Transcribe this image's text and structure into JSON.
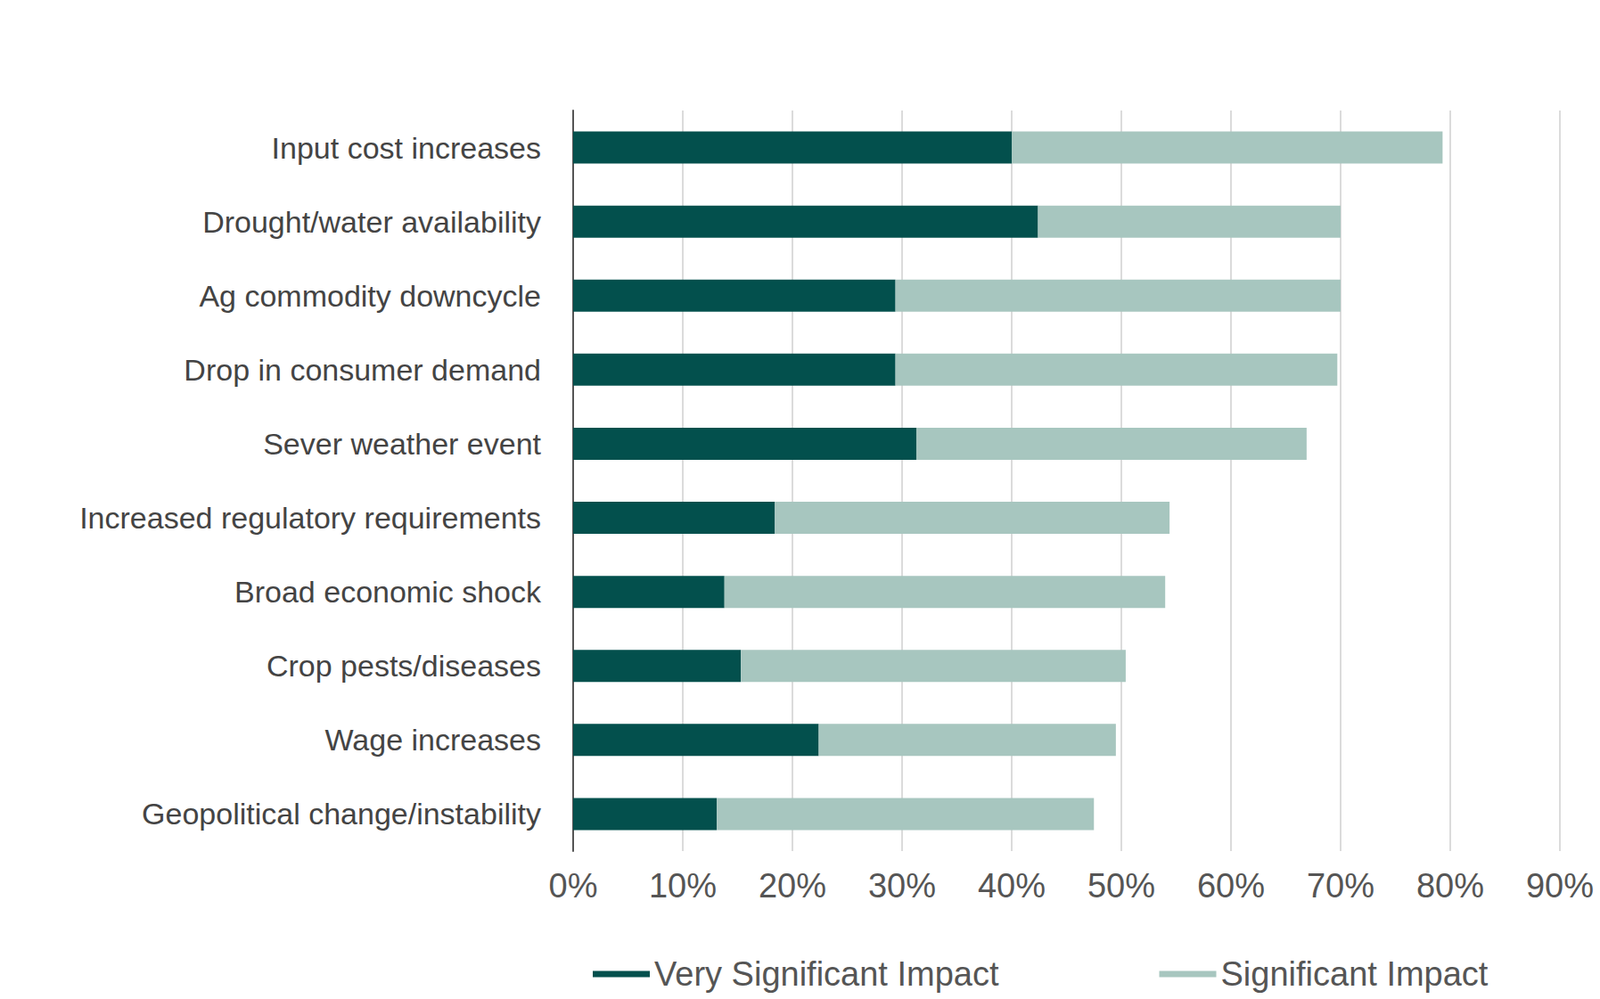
{
  "chart_data": {
    "type": "bar",
    "orientation": "horizontal",
    "stacked": true,
    "categories": [
      "Input cost increases",
      "Drought/water availability",
      "Ag commodity downcycle",
      "Drop in consumer demand",
      "Sever weather event",
      "Increased regulatory requirements",
      "Broad economic shock",
      "Crop pests/diseases",
      "Wage increases",
      "Geopolitical change/instability"
    ],
    "series": [
      {
        "name": "Very Significant Impact",
        "color": "#03504d",
        "values": [
          40.0,
          42.4,
          29.4,
          29.4,
          31.3,
          18.4,
          13.8,
          15.3,
          22.4,
          13.1
        ]
      },
      {
        "name": "Significant Impact",
        "color": "#a7c6bf",
        "values": [
          39.3,
          27.6,
          40.6,
          40.3,
          35.6,
          36.0,
          40.2,
          35.1,
          27.1,
          34.4
        ]
      }
    ],
    "xlim": [
      0,
      90
    ],
    "xticks": [
      {
        "value": 0,
        "label": "0%"
      },
      {
        "value": 10,
        "label": "10%"
      },
      {
        "value": 20,
        "label": "20%"
      },
      {
        "value": 30,
        "label": "30%"
      },
      {
        "value": 40,
        "label": "40%"
      },
      {
        "value": 50,
        "label": "50%"
      },
      {
        "value": 60,
        "label": "60%"
      },
      {
        "value": 70,
        "label": "70%"
      },
      {
        "value": 80,
        "label": "80%"
      },
      {
        "value": 90,
        "label": "90%"
      }
    ],
    "grid": true,
    "legend": "bottom"
  }
}
